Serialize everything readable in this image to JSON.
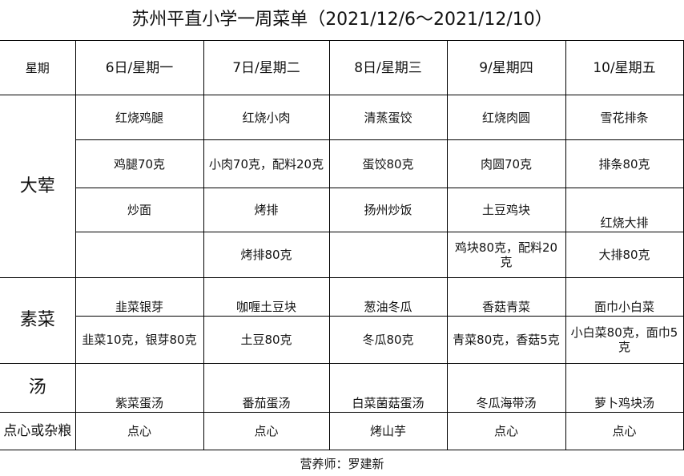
{
  "title": "苏州平直小学一周菜单（2021/12/6～2021/12/10）",
  "header": [
    "星期",
    "6日/星期一",
    "7日/星期二",
    "8日/星期三",
    "9/星期四",
    "10/星期五"
  ],
  "sections": {
    "meat": {
      "label": "大荤",
      "rows": [
        [
          "红烧鸡腿",
          "红烧小肉",
          "清蒸蛋饺",
          "红烧肉圆",
          "雪花排条"
        ],
        [
          "鸡腿70克",
          "小肉70克，配料20克",
          "蛋饺80克",
          "肉圆70克",
          "排条80克"
        ],
        [
          "炒面",
          "烤排",
          "扬州炒饭",
          "土豆鸡块",
          "红烧大排"
        ],
        [
          "",
          "烤排80克",
          "",
          "鸡块80克，配料20克",
          "大排80克"
        ]
      ]
    },
    "veg": {
      "label": "素菜",
      "rows": [
        [
          "韭菜银芽",
          "咖喱土豆块",
          "葱油冬瓜",
          "香菇青菜",
          "面巾小白菜"
        ],
        [
          "韭菜10克，银芽80克",
          "土豆80克",
          "冬瓜80克",
          "青菜80克，香菇5克",
          "小白菜80克，面巾5克"
        ]
      ]
    },
    "soup": {
      "label": "汤",
      "row": [
        "紫菜蛋汤",
        "番茄蛋汤",
        "白菜菌菇蛋汤",
        "冬瓜海带汤",
        "萝卜鸡块汤"
      ]
    },
    "snack": {
      "label": "点心或杂粮",
      "row": [
        "点心",
        "点心",
        "烤山芋",
        "点心",
        "点心"
      ]
    }
  },
  "footer": "营养师：罗建新"
}
